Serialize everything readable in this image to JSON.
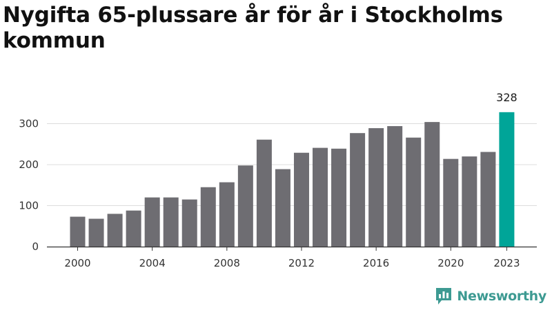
{
  "title": "Nygifta 65-plussare år för år i Stockholms kommun",
  "brand": {
    "name": "Newsworthy",
    "icon": "newsworthy-logo-icon",
    "color": "#3d9a92"
  },
  "colors": {
    "bar": "#6e6d72",
    "highlight": "#00a598",
    "grid": "#dcdcdc",
    "axis": "#333333"
  },
  "chart_data": {
    "type": "bar",
    "title": "Nygifta 65-plussare år för år i Stockholms kommun",
    "xlabel": "",
    "ylabel": "",
    "categories": [
      "2000",
      "2001",
      "2002",
      "2003",
      "2004",
      "2005",
      "2006",
      "2007",
      "2008",
      "2009",
      "2010",
      "2011",
      "2012",
      "2013",
      "2014",
      "2015",
      "2016",
      "2017",
      "2018",
      "2019",
      "2020",
      "2021",
      "2022",
      "2023"
    ],
    "values": [
      73,
      68,
      80,
      88,
      120,
      120,
      115,
      145,
      157,
      198,
      261,
      189,
      229,
      241,
      239,
      277,
      289,
      294,
      266,
      304,
      214,
      220,
      231,
      328
    ],
    "highlight": "2023",
    "data_labels": [
      {
        "category": "2023",
        "text": "328"
      }
    ],
    "xticks": [
      "2000",
      "2004",
      "2008",
      "2012",
      "2016",
      "2020",
      "2023"
    ],
    "yticks": [
      "0",
      "100",
      "200",
      "300"
    ],
    "ylim": [
      0,
      330
    ],
    "grid": true,
    "legend": "none"
  }
}
